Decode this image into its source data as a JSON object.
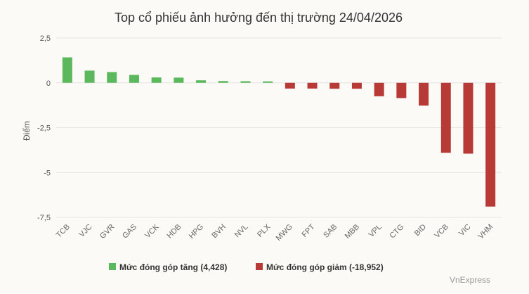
{
  "chart_data": {
    "type": "bar",
    "title": "Top cổ phiếu ảnh hưởng đến thị trường 24/04/2026",
    "xlabel": "",
    "ylabel": "Điểm",
    "ylim": [
      -7.5,
      2.5
    ],
    "yticks": [
      2.5,
      0,
      -2.5,
      -5,
      -7.5
    ],
    "ytick_labels": [
      "2,5",
      "0",
      "-2,5",
      "-5",
      "-7,5"
    ],
    "grid": true,
    "legend_position": "bottom",
    "categories": [
      "TCB",
      "VJC",
      "GVR",
      "GAS",
      "VCK",
      "HDB",
      "HPG",
      "BVH",
      "NVL",
      "PLX",
      "MWG",
      "FPT",
      "SAB",
      "MBB",
      "VPL",
      "CTG",
      "BID",
      "VCB",
      "VIC",
      "VHM"
    ],
    "series": [
      {
        "name": "Mức đóng góp tăng (4,428)",
        "color": "#5cb85c",
        "values": [
          1.42,
          0.68,
          0.6,
          0.44,
          0.3,
          0.29,
          0.14,
          0.1,
          0.09,
          0.08,
          null,
          null,
          null,
          null,
          null,
          null,
          null,
          null,
          null,
          null
        ]
      },
      {
        "name": "Mức đóng góp giảm (-18,952)",
        "color": "#b83a36",
        "values": [
          null,
          null,
          null,
          null,
          null,
          null,
          null,
          null,
          null,
          null,
          -0.32,
          -0.32,
          -0.33,
          -0.33,
          -0.75,
          -0.85,
          -1.27,
          -3.9,
          -3.95,
          -6.9
        ]
      }
    ]
  },
  "credits": "VnExpress"
}
